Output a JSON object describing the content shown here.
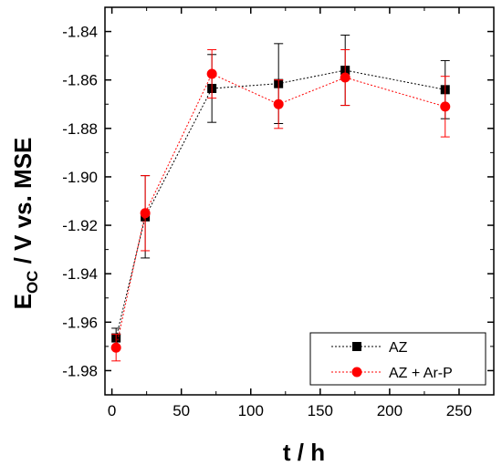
{
  "chart_data": {
    "type": "line",
    "title": "",
    "xlabel": "t / h",
    "ylabel_main": "E",
    "ylabel_sub": "OC",
    "ylabel_rest": " / V vs. MSE",
    "xlim": [
      -5,
      275
    ],
    "ylim": [
      -1.99,
      -1.83
    ],
    "x_ticks": [
      0,
      50,
      100,
      150,
      200,
      250
    ],
    "x_tick_labels": [
      "0",
      "50",
      "100",
      "150",
      "200",
      "250"
    ],
    "y_ticks": [
      -1.98,
      -1.96,
      -1.94,
      -1.92,
      -1.9,
      -1.88,
      -1.86,
      -1.84
    ],
    "y_tick_labels": [
      "-1.98",
      "-1.96",
      "-1.94",
      "-1.92",
      "-1.90",
      "-1.88",
      "-1.86",
      "-1.84"
    ],
    "grid": false,
    "legend_position": "bottom-right",
    "series": [
      {
        "name": "AZ",
        "color": "#000000",
        "marker": "square",
        "x": [
          3,
          24,
          72,
          120,
          168,
          240
        ],
        "y": [
          -1.9665,
          -1.9165,
          -1.8635,
          -1.8615,
          -1.856,
          -1.864
        ],
        "err": [
          0.004,
          0.017,
          0.014,
          0.0165,
          0.0145,
          0.012
        ]
      },
      {
        "name": "AZ + Ar-P",
        "color": "#ff0000",
        "marker": "circle",
        "x": [
          3,
          24,
          72,
          120,
          168,
          240
        ],
        "y": [
          -1.9705,
          -1.915,
          -1.8575,
          -1.87,
          -1.859,
          -1.871
        ],
        "err": [
          0.0055,
          0.0155,
          0.01,
          0.01,
          0.0115,
          0.0125
        ]
      }
    ]
  }
}
